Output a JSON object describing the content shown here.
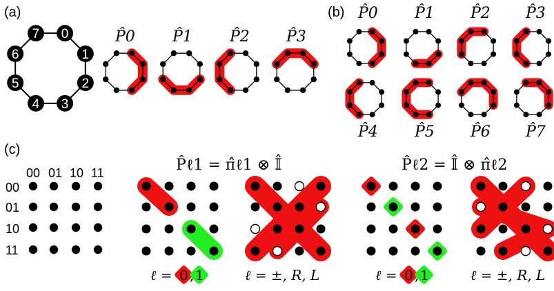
{
  "panels": {
    "a": {
      "label": "(a)"
    },
    "b": {
      "label": "(b)"
    },
    "c": {
      "label": "(c)"
    }
  },
  "ring_node_labels": [
    "0",
    "1",
    "2",
    "3",
    "4",
    "5",
    "6",
    "7"
  ],
  "projectors_small": [
    "P̂0",
    "P̂1",
    "P̂2",
    "P̂3"
  ],
  "projectors_b_top": [
    "P̂0",
    "P̂1",
    "P̂2",
    "P̂3"
  ],
  "projectors_b_bottom": [
    "P̂4",
    "P̂5",
    "P̂6",
    "P̂7"
  ],
  "grid": {
    "col_headers": [
      "00",
      "01",
      "10",
      "11"
    ],
    "row_headers": [
      "00",
      "01",
      "10",
      "11"
    ]
  },
  "equations": {
    "left": "P̂ℓ1 = π̂ℓ1 ⊗ 𝕀̂",
    "right": "P̂ℓ2 = 𝕀̂ ⊗ π̂ℓ2"
  },
  "captions": {
    "l01_prefix": "ℓ =",
    "l01_zero": "0",
    "l01_sep": ",",
    "l01_one": "1",
    "lpm": "ℓ = ±, R, L"
  },
  "colors": {
    "highlight_red": "#ee1111",
    "highlight_green": "#22ee22",
    "node": "#000000"
  }
}
